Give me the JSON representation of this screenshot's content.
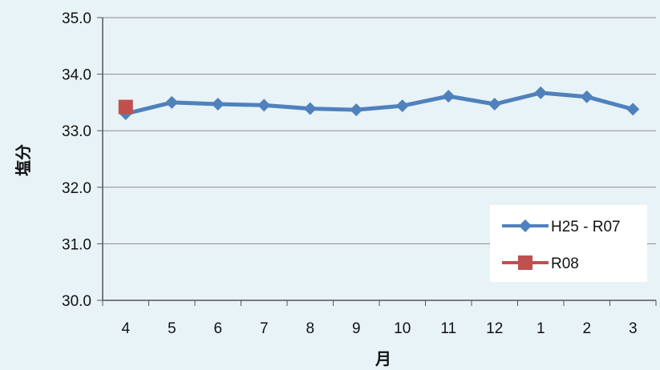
{
  "chart_data": {
    "type": "line",
    "title": "",
    "xlabel": "月",
    "ylabel": "塩分",
    "categories": [
      "4",
      "5",
      "6",
      "7",
      "8",
      "9",
      "10",
      "11",
      "12",
      "1",
      "2",
      "3"
    ],
    "ylim": [
      30.0,
      35.0
    ],
    "yticks": [
      "30.0",
      "31.0",
      "32.0",
      "33.0",
      "34.0",
      "35.0"
    ],
    "grid": true,
    "legend_position": "bottom-right",
    "series": [
      {
        "name": "H25 - R07",
        "values": [
          33.3,
          33.5,
          33.47,
          33.45,
          33.39,
          33.37,
          33.44,
          33.61,
          33.47,
          33.67,
          33.6,
          33.38
        ],
        "color": "#4f81bd",
        "marker": "diamond"
      },
      {
        "name": "R08",
        "values": [
          33.42,
          null,
          null,
          null,
          null,
          null,
          null,
          null,
          null,
          null,
          null,
          null
        ],
        "color": "#c0504d",
        "marker": "square"
      }
    ]
  },
  "colors": {
    "plot_background": "#e8f3f7",
    "gridline": "#8c8c8c",
    "axis": "#555555"
  }
}
